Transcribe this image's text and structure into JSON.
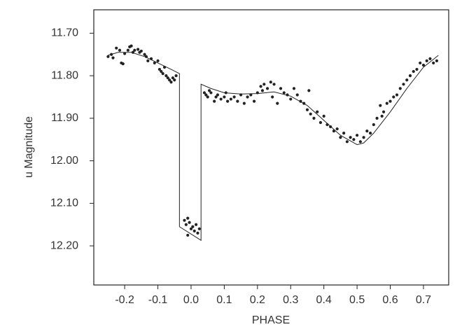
{
  "chart_data": {
    "type": "scatter",
    "xlabel": "PHASE",
    "ylabel": "u Magnitude",
    "xlim": [
      -0.293,
      0.776
    ],
    "ylim": [
      11.645,
      12.292
    ],
    "y_inverted": true,
    "xticks": [
      -0.2,
      -0.1,
      {
        "value": 0,
        "label": "0.0"
      },
      0.1,
      0.2,
      0.3,
      0.4,
      0.5,
      0.6,
      0.7
    ],
    "yticks": [
      {
        "value": 11.7,
        "label": "11.70"
      },
      {
        "value": 11.8,
        "label": "11.80"
      },
      {
        "value": 11.9,
        "label": "11.90"
      },
      {
        "value": 12.0,
        "label": "12.00"
      },
      {
        "value": 12.1,
        "label": "12.10"
      },
      {
        "value": 12.2,
        "label": "12.20"
      }
    ],
    "series": [
      {
        "type": "scatter",
        "color": "#222222",
        "x": [
          -0.25,
          -0.24,
          -0.235,
          -0.225,
          -0.215,
          -0.21,
          -0.205,
          -0.2,
          -0.19,
          -0.185,
          -0.18,
          -0.175,
          -0.17,
          -0.16,
          -0.155,
          -0.15,
          -0.14,
          -0.135,
          -0.13,
          -0.12,
          -0.11,
          -0.1,
          -0.095,
          -0.09,
          -0.085,
          -0.08,
          -0.075,
          -0.07,
          -0.065,
          -0.06,
          -0.055,
          -0.05,
          -0.045,
          -0.02,
          -0.015,
          -0.01,
          -0.005,
          0,
          0.005,
          0.01,
          0.015,
          0.02,
          0.025,
          -0.01,
          0.04,
          0.045,
          0.05,
          0.055,
          0.06,
          0.07,
          0.075,
          0.08,
          0.09,
          0.1,
          0.105,
          0.11,
          0.12,
          0.13,
          0.14,
          0.15,
          0.16,
          0.17,
          0.18,
          0.19,
          0.2,
          0.21,
          0.215,
          0.22,
          0.23,
          0.24,
          0.245,
          0.25,
          0.26,
          0.27,
          0.28,
          0.29,
          0.3,
          0.31,
          0.32,
          0.33,
          0.34,
          0.35,
          0.355,
          0.36,
          0.37,
          0.38,
          0.39,
          0.4,
          0.41,
          0.42,
          0.43,
          0.44,
          0.45,
          0.46,
          0.47,
          0.48,
          0.49,
          0.5,
          0.51,
          0.52,
          0.53,
          0.54,
          0.55,
          0.56,
          0.57,
          0.575,
          0.58,
          0.59,
          0.6,
          0.61,
          0.62,
          0.63,
          0.64,
          0.65,
          0.66,
          0.67,
          0.68,
          0.69,
          0.7,
          0.71,
          0.72,
          0.73,
          0.74
        ],
        "values": [
          11.755,
          11.75,
          11.758,
          11.735,
          11.74,
          11.77,
          11.772,
          11.748,
          11.74,
          11.732,
          11.73,
          11.745,
          11.74,
          11.738,
          11.745,
          11.742,
          11.75,
          11.755,
          11.765,
          11.76,
          11.77,
          11.765,
          11.785,
          11.79,
          11.795,
          11.78,
          11.8,
          11.805,
          11.81,
          11.815,
          11.805,
          11.81,
          11.8,
          12.14,
          12.15,
          12.135,
          12.145,
          12.16,
          12.155,
          12.165,
          12.15,
          12.17,
          12.16,
          12.175,
          11.84,
          11.845,
          11.85,
          11.835,
          11.84,
          11.86,
          11.85,
          11.845,
          11.855,
          11.85,
          11.84,
          11.86,
          11.855,
          11.85,
          11.86,
          11.845,
          11.865,
          11.85,
          11.845,
          11.86,
          11.84,
          11.825,
          11.835,
          11.82,
          11.83,
          11.815,
          11.85,
          11.82,
          11.865,
          11.83,
          11.84,
          11.845,
          11.855,
          11.83,
          11.845,
          11.86,
          11.865,
          11.88,
          11.835,
          11.89,
          11.9,
          11.885,
          11.91,
          11.895,
          11.915,
          11.92,
          11.93,
          11.925,
          11.945,
          11.935,
          11.955,
          11.945,
          11.95,
          11.94,
          11.955,
          11.945,
          11.93,
          11.935,
          11.915,
          11.9,
          11.87,
          11.895,
          11.885,
          11.865,
          11.86,
          11.85,
          11.845,
          11.83,
          11.82,
          11.81,
          11.8,
          11.79,
          11.785,
          11.77,
          11.775,
          11.765,
          11.76,
          11.77,
          11.765
        ]
      },
      {
        "type": "line",
        "color": "#222222",
        "x": [
          -0.25,
          -0.22,
          -0.18,
          -0.14,
          -0.1,
          -0.06,
          -0.035,
          -0.035,
          0.03,
          0.03,
          0.06,
          0.1,
          0.15,
          0.2,
          0.25,
          0.3,
          0.35,
          0.4,
          0.45,
          0.5,
          0.52,
          0.55,
          0.6,
          0.65,
          0.7,
          0.745
        ],
        "values": [
          11.752,
          11.745,
          11.745,
          11.755,
          11.77,
          11.785,
          11.795,
          12.155,
          12.187,
          11.82,
          11.83,
          11.84,
          11.843,
          11.842,
          11.838,
          11.848,
          11.87,
          11.905,
          11.94,
          11.962,
          11.958,
          11.935,
          11.885,
          11.83,
          11.78,
          11.752
        ]
      }
    ]
  }
}
